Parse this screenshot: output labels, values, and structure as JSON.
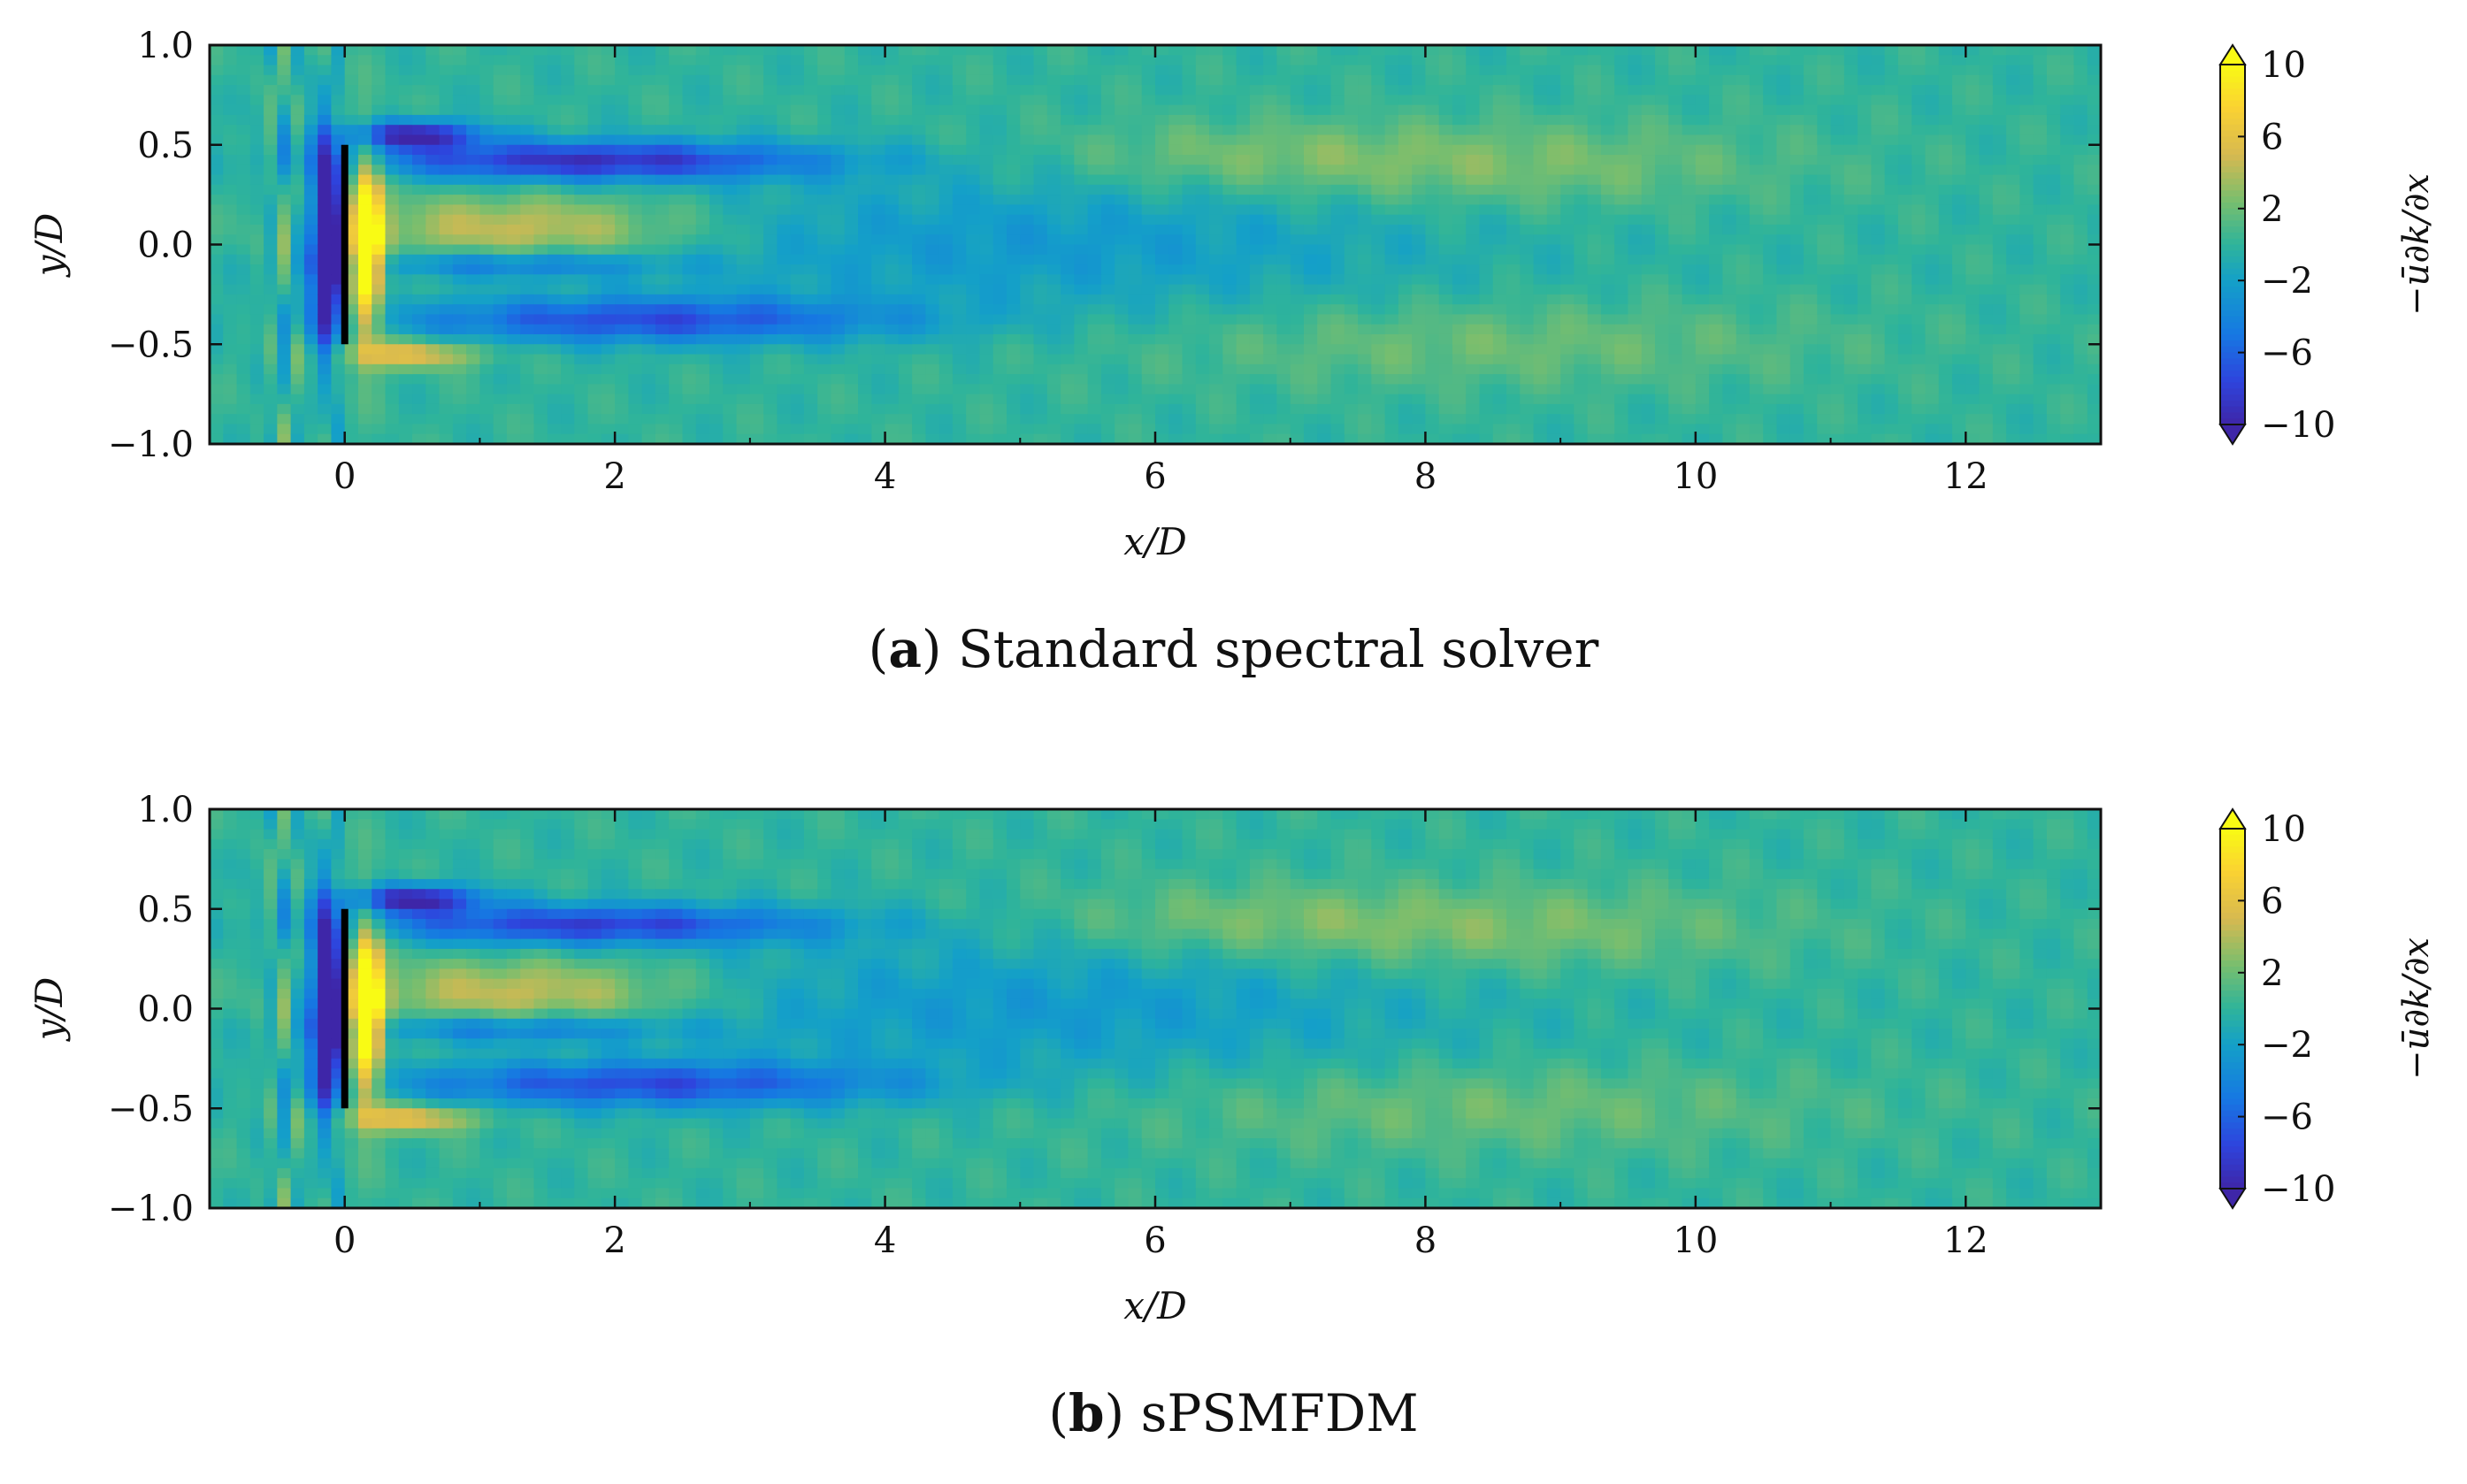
{
  "chart_data": [
    {
      "id": "a",
      "type": "heatmap",
      "panel_letter": "a",
      "caption": "Standard spectral solver",
      "xlabel": "x/D",
      "ylabel": "y/D",
      "xlim": [
        -1.0,
        13.0
      ],
      "ylim": [
        -1.0,
        1.0
      ],
      "xticks": [
        0,
        2,
        4,
        6,
        8,
        10,
        12
      ],
      "yticks": [
        "−1.0",
        "−0.5",
        "0.0",
        "0.5",
        "1.0"
      ],
      "ytick_values": [
        -1.0,
        -0.5,
        0.0,
        0.5,
        1.0
      ],
      "colorbar": {
        "label": "−ū∂k/∂x",
        "ticks": [
          "10",
          "6",
          "2",
          "−2",
          "−6",
          "−10"
        ],
        "tick_values": [
          10,
          6,
          2,
          -2,
          -6,
          -10
        ],
        "range": [
          -10,
          10
        ],
        "extend": "both"
      },
      "rotor": {
        "x": 0.0,
        "y_range": [
          -0.5,
          0.5
        ]
      }
    },
    {
      "id": "b",
      "type": "heatmap",
      "panel_letter": "b",
      "caption": "sPSMFDM",
      "xlabel": "x/D",
      "ylabel": "y/D",
      "xlim": [
        -1.0,
        13.0
      ],
      "ylim": [
        -1.0,
        1.0
      ],
      "xticks": [
        0,
        2,
        4,
        6,
        8,
        10,
        12
      ],
      "yticks": [
        "−1.0",
        "−0.5",
        "0.0",
        "0.5",
        "1.0"
      ],
      "ytick_values": [
        -1.0,
        -0.5,
        0.0,
        0.5,
        1.0
      ],
      "colorbar": {
        "label": "−ū∂k/∂x",
        "ticks": [
          "10",
          "6",
          "2",
          "−2",
          "−6",
          "−10"
        ],
        "tick_values": [
          10,
          6,
          2,
          -2,
          -6,
          -10
        ],
        "range": [
          -10,
          10
        ],
        "extend": "both"
      },
      "rotor": {
        "x": 0.0,
        "y_range": [
          -0.5,
          0.5
        ]
      }
    }
  ],
  "colors": {
    "field_background": "#2fb49a",
    "positive_high": "#f5e726",
    "positive_mid": "#e6b35a",
    "negative_mid": "#1f7fc8",
    "negative_high": "#3a2f9a",
    "rotor_line": "#000000"
  }
}
